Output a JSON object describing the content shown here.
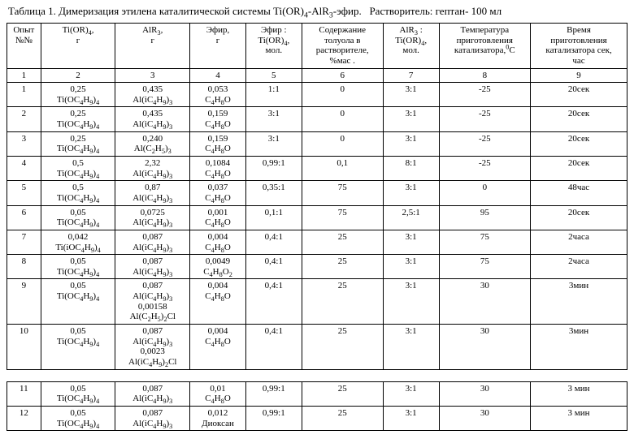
{
  "title_html": "Таблица 1. Димеризация этилена каталитической системы Ti(OR)<sub>4</sub>-AlR<sub>3</sub>-эфир.&nbsp;&nbsp; Растворитель: гептан- 100 мл",
  "headers": [
    "Опыт<br>№№",
    "Ti(OR)<sub>4</sub>,<br>г",
    "AlR<sub>3</sub>,<br>г",
    "Эфир,<br>г",
    "Эфир :<br>Ti(OR)<sub>4</sub>,<br>мол.",
    "Содержание<br>толуола в<br>растворителе,<br>%мас .",
    "AlR<sub>3</sub> :<br>Ti(OR)<sub>4</sub>,<br>мол.",
    "Температура<br>приготовления<br>катализатора,<sup>0</sup>С",
    "Время<br>приготовления<br>катализатора сек,<br>час"
  ],
  "number_row": [
    "1",
    "2",
    "3",
    "4",
    "5",
    "6",
    "7",
    "8",
    "9"
  ],
  "rows_top": [
    {
      "n": "1",
      "c2": "0,25<br>Ti(OC<sub>4</sub>H<sub>9</sub>)<sub>4</sub>",
      "c3": "0,435<br>Al(iC<sub>4</sub>H<sub>9</sub>)<sub>3</sub>",
      "c4": "0,053<br>C<sub>4</sub>H<sub>8</sub>O",
      "c5": "1:1",
      "c6": "0",
      "c7": "3:1",
      "c8": "-25",
      "c9": "20сек"
    },
    {
      "n": "2",
      "c2": "0,25<br>Ti(OC<sub>4</sub>H<sub>9</sub>)<sub>4</sub>",
      "c3": "0,435<br>Al(iC<sub>4</sub>H<sub>9</sub>)<sub>3</sub>",
      "c4": "0,159<br>C<sub>4</sub>H<sub>8</sub>O",
      "c5": "3:1",
      "c6": "0",
      "c7": "3:1",
      "c8": "-25",
      "c9": "20сек"
    },
    {
      "n": "3",
      "c2": "0,25<br>Ti(OC<sub>4</sub>H<sub>9</sub>)<sub>4</sub>",
      "c3": "0,240<br>Al(C<sub>2</sub>H<sub>5</sub>)<sub>3</sub>",
      "c4": "0,159<br>C<sub>4</sub>H<sub>8</sub>O",
      "c5": "3:1",
      "c6": "0",
      "c7": "3:1",
      "c8": "-25",
      "c9": "20сек"
    },
    {
      "n": "4",
      "c2": "0,5<br>Ti(OC<sub>4</sub>H<sub>9</sub>)<sub>4</sub>",
      "c3": "2,32<br>Al(iC<sub>4</sub>H<sub>9</sub>)<sub>3</sub>",
      "c4": "0,1084<br>C<sub>4</sub>H<sub>8</sub>O",
      "c5": "0,99:1",
      "c6": "0,1",
      "c7": "8:1",
      "c8": "-25",
      "c9": "20сек"
    },
    {
      "n": "5",
      "c2": "0,5<br>Ti(OC<sub>4</sub>H<sub>9</sub>)<sub>4</sub>",
      "c3": "0,87<br>Al(iC<sub>4</sub>H<sub>9</sub>)<sub>3</sub>",
      "c4": "0,037<br>C<sub>4</sub>H<sub>8</sub>O",
      "c5": "0,35:1",
      "c6": "75",
      "c7": "3:1",
      "c8": "0",
      "c9": "48час"
    },
    {
      "n": "6",
      "c2": "0,05<br>Ti(OC<sub>4</sub>H<sub>9</sub>)<sub>4</sub>",
      "c3": "0,0725<br>Al(iC<sub>4</sub>H<sub>9</sub>)<sub>3</sub>",
      "c4": "0,001<br>C<sub>4</sub>H<sub>8</sub>O",
      "c5": "0,1:1",
      "c6": "75",
      "c7": "2,5:1",
      "c8": "95",
      "c9": "20сек"
    },
    {
      "n": "7",
      "c2": "0,042<br>Ti(iOC<sub>4</sub>H<sub>9</sub>)<sub>4</sub>",
      "c3": "0,087<br>Al(iC<sub>4</sub>H<sub>9</sub>)<sub>3</sub>",
      "c4": "0,004<br>C<sub>4</sub>H<sub>8</sub>O",
      "c5": "0,4:1",
      "c6": "25",
      "c7": "3:1",
      "c8": "75",
      "c9": "2часа"
    },
    {
      "n": "8",
      "c2": "0,05<br>Ti(OC<sub>4</sub>H<sub>9</sub>)<sub>4</sub>",
      "c3": "0,087<br>Al(iC<sub>4</sub>H<sub>9</sub>)<sub>3</sub>",
      "c4": "0,0049<br>C<sub>4</sub>H<sub>8</sub>O<sub>2</sub>",
      "c5": "0,4:1",
      "c6": "25",
      "c7": "3:1",
      "c8": "75",
      "c9": "2часа"
    },
    {
      "n": "9",
      "c2": "0,05<br>Ti(OC<sub>4</sub>H<sub>9</sub>)<sub>4</sub>",
      "c3": "0,087<br>Al(iC<sub>4</sub>H<sub>9</sub>)<sub>3</sub><br>0,00158<br>Al(C<sub>2</sub>H<sub>5</sub>)<sub>2</sub>Cl",
      "c4": "0,004<br>C<sub>4</sub>H<sub>8</sub>O",
      "c5": "0,4:1",
      "c6": "25",
      "c7": "3:1",
      "c8": "30",
      "c9": "3мин"
    },
    {
      "n": "10",
      "c2": "0,05<br>Ti(OC<sub>4</sub>H<sub>9</sub>)<sub>4</sub>",
      "c3": "0,087<br>Al(iC<sub>4</sub>H<sub>9</sub>)<sub>3</sub><br>0,0023<br>Al(iC<sub>4</sub>H<sub>9</sub>)<sub>2</sub>Cl",
      "c4": "0,004<br>C<sub>4</sub>H<sub>8</sub>O",
      "c5": "0,4:1",
      "c6": "25",
      "c7": "3:1",
      "c8": "30",
      "c9": "3мин"
    }
  ],
  "rows_bottom": [
    {
      "n": "11",
      "c2": "0,05<br>Ti(OC<sub>4</sub>H<sub>9</sub>)<sub>4</sub>",
      "c3": "0,087<br>Al(iC<sub>4</sub>H<sub>9</sub>)<sub>3</sub>",
      "c4": "0,01<br>C<sub>4</sub>H<sub>8</sub>O",
      "c5": "0,99:1",
      "c6": "25",
      "c7": "3:1",
      "c8": "30",
      "c9": "3 мин"
    },
    {
      "n": "12",
      "c2": "0,05<br>Ti(OC<sub>4</sub>H<sub>9</sub>)<sub>4</sub>",
      "c3": "0,087<br>Al(iC<sub>4</sub>H<sub>9</sub>)<sub>3</sub>",
      "c4": "0,012<br>Диоксан",
      "c5": "0,99:1",
      "c6": "25",
      "c7": "3:1",
      "c8": "30",
      "c9": "3 мин"
    }
  ]
}
